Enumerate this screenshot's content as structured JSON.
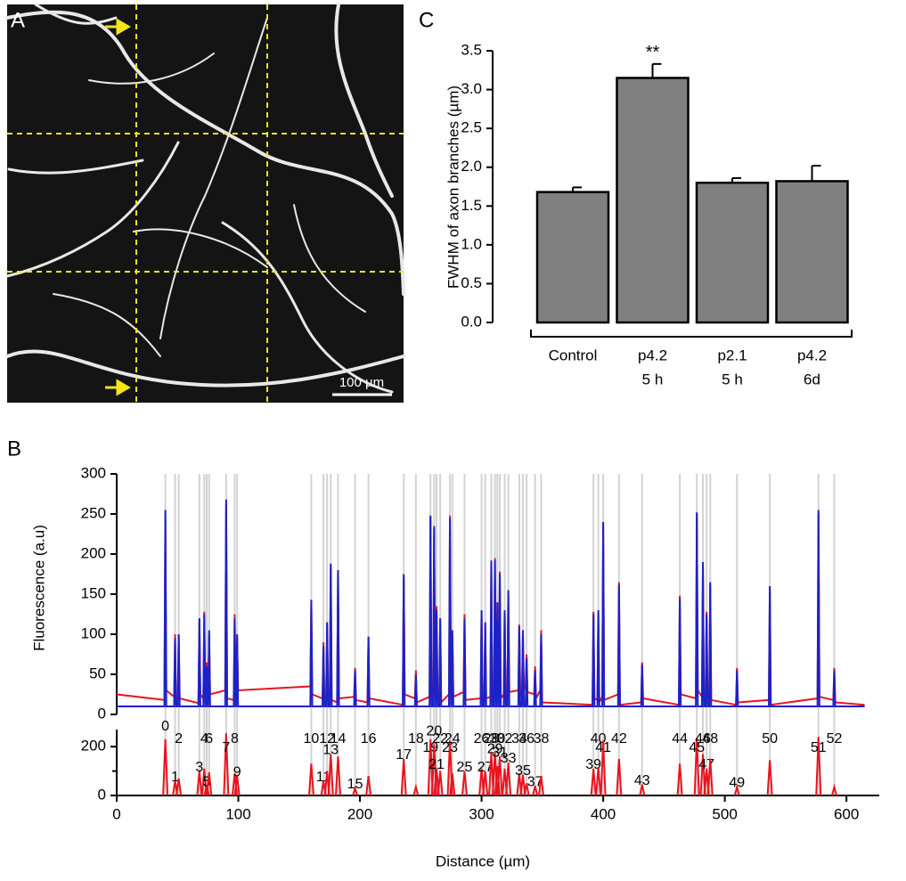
{
  "chart_data": [
    {
      "type": "image",
      "panel": "A",
      "scale_label": "100 µm"
    },
    {
      "type": "bar",
      "panel": "C",
      "y_label": "FWHM of axon branches (µm)",
      "categories": [
        "Control",
        "p4.2",
        "p2.1",
        "p4.2"
      ],
      "category_sublabels": [
        null,
        "5 h",
        "5 h",
        "6d"
      ],
      "values": [
        1.68,
        3.15,
        1.8,
        1.82
      ],
      "errors": [
        0.06,
        0.18,
        0.06,
        0.2
      ],
      "significance": [
        null,
        "**",
        null,
        null
      ],
      "color": "#808080",
      "ylim": [
        0,
        3.5
      ],
      "yticks": [
        {
          "value": 0,
          "label": "0.0"
        },
        0.5,
        {
          "value": 1,
          "label": "1.0"
        },
        1.5,
        {
          "value": 2,
          "label": "2.0"
        },
        2.5,
        {
          "value": 3,
          "label": "3.0"
        },
        3.5
      ]
    },
    {
      "type": "line",
      "panel": "B",
      "y_label": "Fluorescence (a.u)",
      "xlim": [
        0,
        627
      ],
      "ylim": [
        0,
        300
      ],
      "yticks": [
        0,
        50,
        100,
        150,
        200,
        250,
        300
      ],
      "x": [
        0,
        39.2,
        40,
        40.8,
        47.2,
        48,
        48.8,
        50.2,
        51,
        51.8,
        67.2,
        68,
        68.8,
        71.2,
        72,
        72.8,
        73.2,
        74,
        74.8,
        75.2,
        76,
        76.8,
        89.2,
        90,
        90.8,
        96.2,
        97,
        97.8,
        98.2,
        99,
        99.8,
        159.2,
        160,
        160.8,
        169.2,
        170,
        170.8,
        172.2,
        173,
        173.8,
        175.2,
        176,
        176.8,
        181.2,
        182,
        182.8,
        195.2,
        196,
        196.8,
        206.2,
        207,
        207.8,
        235.2,
        236,
        236.8,
        245.2,
        246,
        246.8,
        257.2,
        258,
        258.8,
        260.2,
        261,
        261.8,
        262.2,
        263,
        263.8,
        265.2,
        266,
        266.8,
        273.2,
        274,
        274.8,
        275.2,
        276,
        276.8,
        285.2,
        286,
        286.8,
        299.2,
        300,
        300.8,
        302.2,
        303,
        303.8,
        307.2,
        308,
        308.8,
        310.2,
        311,
        311.8,
        312.2,
        313,
        313.8,
        314.2,
        315,
        315.8,
        318.2,
        319,
        319.8,
        321.2,
        322,
        322.8,
        330.2,
        331,
        331.8,
        333.2,
        334,
        334.8,
        336.2,
        337,
        337.8,
        343.2,
        344,
        344.8,
        348.2,
        349,
        349.8,
        391.2,
        392,
        392.8,
        395.2,
        396,
        396.8,
        399.2,
        400,
        400.8,
        412.2,
        413,
        413.8,
        431.2,
        432,
        432.8,
        462.2,
        463,
        463.8,
        476.2,
        477,
        477.8,
        481.2,
        482,
        482.8,
        484.2,
        485,
        485.8,
        487.2,
        488,
        488.8,
        509.2,
        510,
        510.8,
        536.2,
        537,
        537.8,
        576.2,
        577,
        577.8,
        589.2,
        590,
        590.8,
        615
      ],
      "series": [
        {
          "color": "#e8141e",
          "values": [
            25,
            18,
            250,
            30,
            22,
            100,
            15,
            12,
            98,
            20,
            14,
            118,
            25,
            20,
            128,
            22,
            18,
            65,
            12,
            16,
            100,
            25,
            30,
            262,
            20,
            18,
            125,
            12,
            14,
            95,
            30,
            35,
            140,
            25,
            20,
            90,
            15,
            18,
            112,
            22,
            25,
            185,
            18,
            15,
            178,
            20,
            22,
            58,
            18,
            15,
            95,
            20,
            12,
            172,
            25,
            20,
            55,
            15,
            22,
            245,
            30,
            25,
            232,
            20,
            18,
            135,
            22,
            20,
            118,
            15,
            25,
            248,
            20,
            15,
            100,
            22,
            28,
            125,
            18,
            20,
            128,
            25,
            15,
            112,
            20,
            22,
            190,
            18,
            20,
            195,
            25,
            18,
            138,
            22,
            15,
            178,
            20,
            25,
            128,
            18,
            20,
            150,
            28,
            30,
            112,
            25,
            22,
            100,
            30,
            35,
            75,
            28,
            25,
            60,
            20,
            30,
            105,
            15,
            12,
            128,
            20,
            18,
            125,
            15,
            22,
            238,
            18,
            25,
            165,
            12,
            15,
            65,
            20,
            12,
            148,
            25,
            20,
            250,
            30,
            22,
            185,
            18,
            15,
            128,
            25,
            20,
            162,
            18,
            12,
            58,
            15,
            18,
            158,
            12,
            20,
            250,
            22,
            18,
            58,
            15,
            12
          ]
        },
        {
          "color": "#1b22c8",
          "values": [
            10,
            10,
            255,
            10,
            10,
            95,
            10,
            10,
            100,
            10,
            10,
            120,
            10,
            10,
            125,
            10,
            10,
            60,
            10,
            10,
            105,
            10,
            10,
            268,
            10,
            10,
            120,
            10,
            10,
            100,
            10,
            10,
            143,
            10,
            10,
            85,
            10,
            10,
            115,
            10,
            10,
            188,
            10,
            10,
            180,
            10,
            10,
            55,
            10,
            10,
            97,
            10,
            10,
            175,
            10,
            10,
            50,
            10,
            10,
            248,
            10,
            10,
            235,
            10,
            10,
            130,
            10,
            10,
            120,
            10,
            10,
            245,
            10,
            10,
            105,
            10,
            10,
            120,
            10,
            10,
            130,
            10,
            10,
            115,
            10,
            10,
            192,
            10,
            10,
            192,
            10,
            10,
            140,
            10,
            10,
            175,
            10,
            10,
            130,
            10,
            10,
            155,
            10,
            10,
            110,
            10,
            10,
            105,
            10,
            10,
            70,
            10,
            10,
            55,
            10,
            10,
            100,
            10,
            10,
            125,
            10,
            10,
            130,
            10,
            10,
            240,
            10,
            10,
            162,
            10,
            10,
            62,
            10,
            10,
            145,
            10,
            10,
            252,
            10,
            10,
            190,
            10,
            10,
            125,
            10,
            10,
            165,
            10,
            10,
            55,
            10,
            10,
            160,
            10,
            10,
            255,
            10,
            10,
            55,
            10,
            10
          ]
        }
      ]
    },
    {
      "type": "spikes",
      "x_label": "Distance (µm)",
      "xlim": [
        0,
        627
      ],
      "xticks": [
        0,
        100,
        200,
        300,
        400,
        500,
        600
      ],
      "ylim": [
        0,
        270
      ],
      "yticks": [
        0,
        200
      ],
      "minor_yticks": [
        100
      ],
      "color": "#e8141e",
      "x": [
        40,
        48,
        51,
        68,
        72,
        74,
        76,
        90,
        97,
        99,
        160,
        170,
        173,
        176,
        182,
        196,
        207,
        236,
        246,
        258,
        261,
        263,
        266,
        274,
        276,
        286,
        300,
        303,
        308,
        311,
        313,
        315,
        319,
        322,
        331,
        334,
        337,
        344,
        349,
        392,
        396,
        400,
        413,
        432,
        463,
        477,
        482,
        485,
        488,
        510,
        537,
        577,
        590
      ],
      "values": [
        230,
        60,
        70,
        100,
        110,
        40,
        95,
        255,
        90,
        80,
        130,
        60,
        100,
        170,
        160,
        30,
        80,
        150,
        35,
        230,
        210,
        110,
        100,
        225,
        90,
        100,
        110,
        100,
        175,
        175,
        120,
        160,
        110,
        135,
        90,
        85,
        50,
        40,
        80,
        110,
        115,
        225,
        150,
        45,
        130,
        235,
        170,
        110,
        150,
        35,
        145,
        240,
        35
      ],
      "peak_labels": [
        0,
        1,
        2,
        3,
        4,
        5,
        6,
        7,
        8,
        9,
        10,
        11,
        12,
        13,
        14,
        15,
        16,
        17,
        18,
        19,
        20,
        21,
        22,
        23,
        24,
        25,
        26,
        27,
        28,
        29,
        30,
        31,
        32,
        33,
        34,
        35,
        36,
        37,
        38,
        39,
        40,
        41,
        42,
        43,
        44,
        45,
        46,
        47,
        48,
        49,
        50,
        51,
        52
      ]
    }
  ]
}
